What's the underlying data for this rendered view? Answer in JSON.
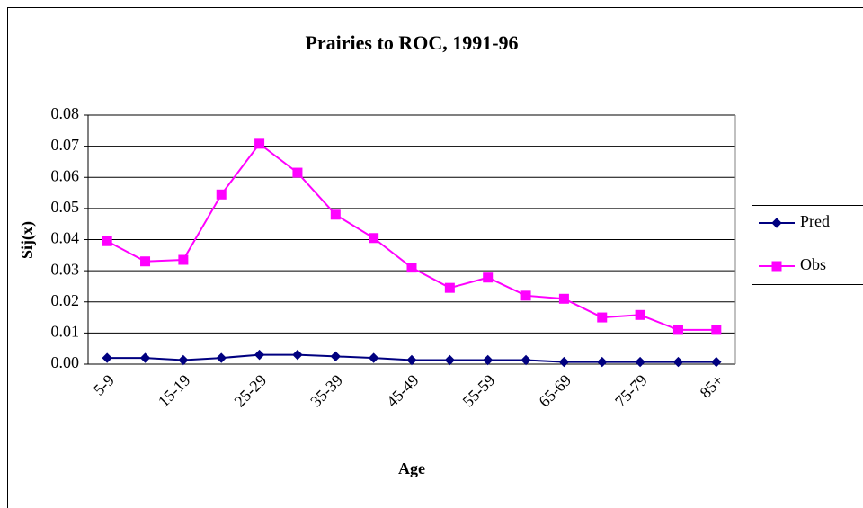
{
  "chart_data": {
    "type": "line",
    "title": "Prairies to ROC, 1991-96",
    "x_label": "Age",
    "y_label": "Sij(x)",
    "categories": [
      "5-9",
      null,
      "15-19",
      null,
      "25-29",
      null,
      "35-39",
      null,
      "45-49",
      null,
      "55-59",
      null,
      "65-69",
      null,
      "75-79",
      null,
      "85+"
    ],
    "series": [
      {
        "name": "Pred",
        "color": "#000080",
        "marker": "diamond",
        "values": [
          0.002,
          0.002,
          0.0013,
          0.002,
          0.003,
          0.003,
          0.0025,
          0.002,
          0.0013,
          0.0013,
          0.0013,
          0.0013,
          0.0007,
          0.0007,
          0.0007,
          0.0007,
          0.0007
        ]
      },
      {
        "name": "Obs",
        "color": "#ff00ff",
        "marker": "square",
        "values": [
          0.0395,
          0.033,
          0.0335,
          0.0545,
          0.0708,
          0.0615,
          0.048,
          0.0405,
          0.031,
          0.0245,
          0.0278,
          0.022,
          0.021,
          0.015,
          0.0158,
          0.011,
          0.011
        ]
      }
    ],
    "ylim": [
      0,
      0.08
    ],
    "yticks": [
      {
        "value": 0,
        "label": "0.00"
      },
      0.01,
      0.02,
      0.03,
      0.04,
      0.05,
      0.06,
      0.07,
      0.08
    ],
    "grid": true,
    "legend": "right"
  }
}
